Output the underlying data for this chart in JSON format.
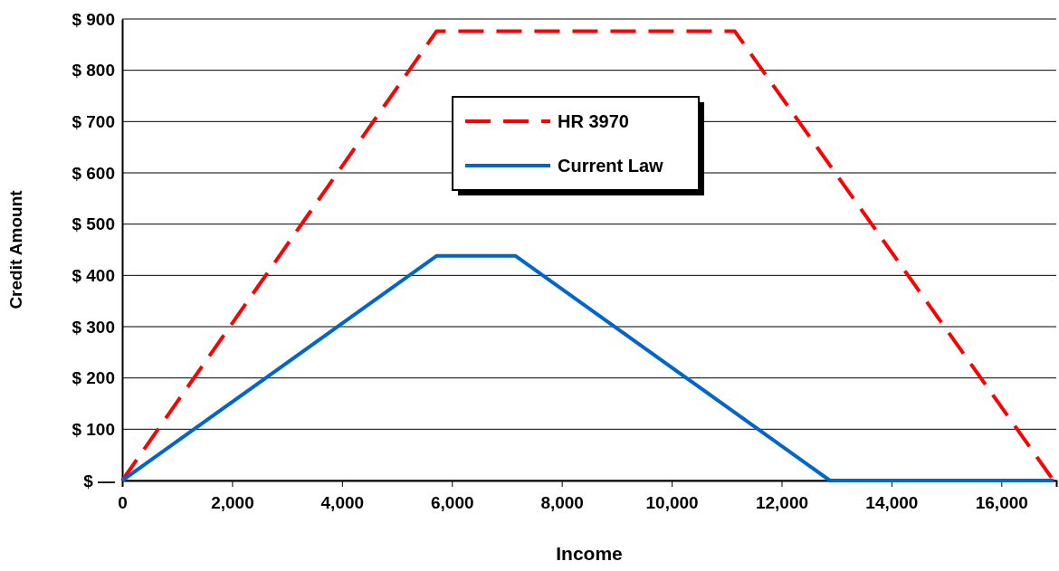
{
  "chart_data": {
    "type": "line",
    "xlabel": "Income",
    "ylabel": "Credit Amount",
    "xlim": [
      0,
      17000
    ],
    "xticks": [
      {
        "value": 0,
        "label": "0"
      },
      {
        "value": 2000,
        "label": "2,000"
      },
      {
        "value": 4000,
        "label": "4,000"
      },
      {
        "value": 6000,
        "label": "6,000"
      },
      {
        "value": 8000,
        "label": "8,000"
      },
      {
        "value": 10000,
        "label": "10,000"
      },
      {
        "value": 12000,
        "label": "12,000"
      },
      {
        "value": 14000,
        "label": "14,000"
      },
      {
        "value": 16000,
        "label": "16,000"
      }
    ],
    "ylim": [
      0,
      900
    ],
    "yticks": [
      {
        "value": 0,
        "label": "$ —"
      },
      {
        "value": 100,
        "label": "$ 100"
      },
      {
        "value": 200,
        "label": "$ 200"
      },
      {
        "value": 300,
        "label": "$ 300"
      },
      {
        "value": 400,
        "label": "$ 400"
      },
      {
        "value": 500,
        "label": "$ 500"
      },
      {
        "value": 600,
        "label": "$ 600"
      },
      {
        "value": 700,
        "label": "$ 700"
      },
      {
        "value": 800,
        "label": "$ 800"
      },
      {
        "value": 900,
        "label": "$ 900"
      }
    ],
    "grid": "y",
    "legend": "top",
    "marker": "none",
    "series": [
      {
        "name": "HR 3970",
        "color": "#ff0000",
        "line_style": "dashed",
        "x": [
          0,
          5720,
          11150,
          16950
        ],
        "values": [
          0,
          876,
          876,
          0
        ]
      },
      {
        "name": "Current Law",
        "color": "#0066cc",
        "line_style": "solid",
        "x": [
          0,
          5720,
          7160,
          12880,
          16950
        ],
        "values": [
          0,
          438,
          438,
          0,
          0
        ]
      }
    ]
  }
}
